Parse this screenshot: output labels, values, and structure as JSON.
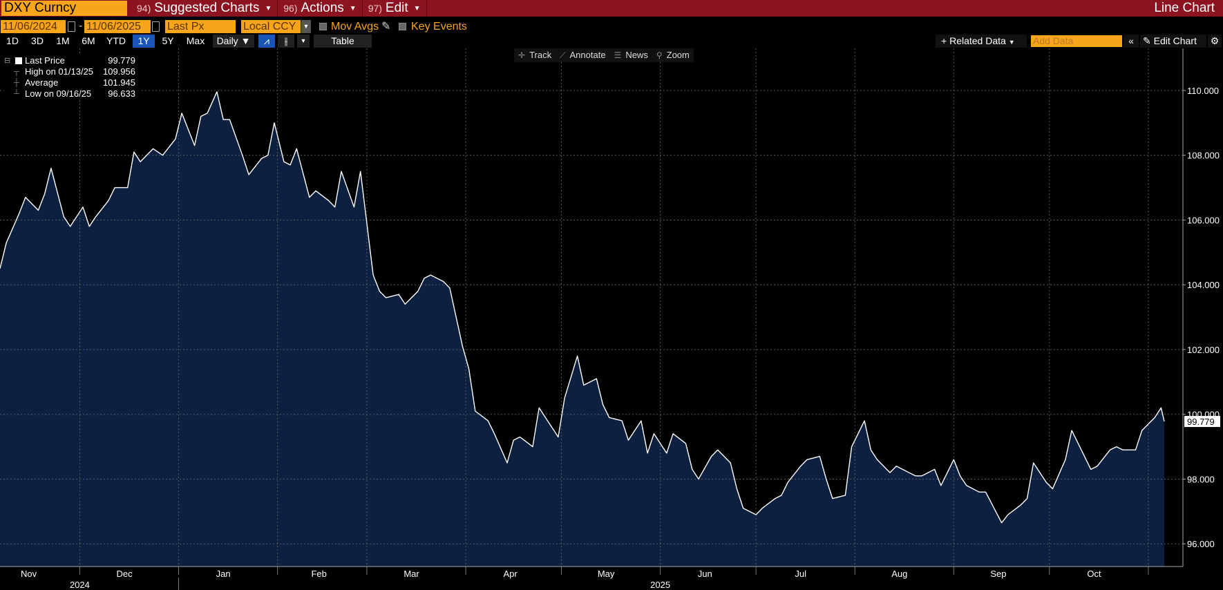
{
  "toolbar": {
    "ticker": "DXY Curncy",
    "menus": [
      {
        "num": "94)",
        "label": "Suggested Charts"
      },
      {
        "num": "96)",
        "label": "Actions"
      },
      {
        "num": "97)",
        "label": "Edit"
      }
    ],
    "chart_type": "Line Chart"
  },
  "settings": {
    "start_date": "11/06/2024",
    "end_date": "11/06/2025",
    "field": "Last Px",
    "currency": "Local CCY",
    "mov_avgs": "Mov Avgs",
    "key_events": "Key Events"
  },
  "ranges": [
    "1D",
    "3D",
    "1M",
    "6M",
    "YTD",
    "1Y",
    "5Y",
    "Max"
  ],
  "active_range": "1Y",
  "frequency": "Daily",
  "table_label": "Table",
  "related_data": "Related Data",
  "add_data_placeholder": "Add Data",
  "edit_chart": "Edit Chart",
  "tools": [
    {
      "icon": "crosshair-icon",
      "glyph": "✛",
      "label": "Track"
    },
    {
      "icon": "pencil-icon",
      "glyph": "⟋",
      "label": "Annotate"
    },
    {
      "icon": "news-icon",
      "glyph": "☰",
      "label": "News"
    },
    {
      "icon": "magnifier-icon",
      "glyph": "⚲",
      "label": "Zoom"
    }
  ],
  "legend": {
    "last_label": "Last Price",
    "last_value": "99.779",
    "high_label": "High on 01/13/25",
    "high_value": "109.956",
    "avg_label": "Average",
    "avg_value": "101.945",
    "low_label": "Low on 09/16/25",
    "low_value": "96.633"
  },
  "colors": {
    "line": "#ffffff",
    "fill": "#0d2040",
    "grid": "#5a5a5a",
    "accent": "#f7a51a",
    "topbar": "#8b1420"
  },
  "chart_data": {
    "type": "area",
    "x": [
      "2024-11-06",
      "2024-11-08",
      "2024-11-12",
      "2024-11-14",
      "2024-11-18",
      "2024-11-20",
      "2024-11-22",
      "2024-11-26",
      "2024-11-28",
      "2024-12-02",
      "2024-12-04",
      "2024-12-06",
      "2024-12-10",
      "2024-12-12",
      "2024-12-16",
      "2024-12-18",
      "2024-12-20",
      "2024-12-24",
      "2024-12-27",
      "2024-12-31",
      "2025-01-02",
      "2025-01-06",
      "2025-01-08",
      "2025-01-10",
      "2025-01-13",
      "2025-01-15",
      "2025-01-17",
      "2025-01-21",
      "2025-01-23",
      "2025-01-27",
      "2025-01-29",
      "2025-01-31",
      "2025-02-03",
      "2025-02-05",
      "2025-02-07",
      "2025-02-11",
      "2025-02-13",
      "2025-02-17",
      "2025-02-19",
      "2025-02-21",
      "2025-02-25",
      "2025-02-27",
      "2025-03-03",
      "2025-03-05",
      "2025-03-07",
      "2025-03-11",
      "2025-03-13",
      "2025-03-17",
      "2025-03-19",
      "2025-03-21",
      "2025-03-25",
      "2025-03-27",
      "2025-03-31",
      "2025-04-02",
      "2025-04-04",
      "2025-04-08",
      "2025-04-10",
      "2025-04-14",
      "2025-04-16",
      "2025-04-18",
      "2025-04-22",
      "2025-04-24",
      "2025-04-28",
      "2025-04-30",
      "2025-05-02",
      "2025-05-06",
      "2025-05-08",
      "2025-05-12",
      "2025-05-14",
      "2025-05-16",
      "2025-05-20",
      "2025-05-22",
      "2025-05-26",
      "2025-05-28",
      "2025-05-30",
      "2025-06-03",
      "2025-06-05",
      "2025-06-09",
      "2025-06-11",
      "2025-06-13",
      "2025-06-17",
      "2025-06-19",
      "2025-06-23",
      "2025-06-25",
      "2025-06-27",
      "2025-07-01",
      "2025-07-03",
      "2025-07-07",
      "2025-07-09",
      "2025-07-11",
      "2025-07-15",
      "2025-07-17",
      "2025-07-21",
      "2025-07-23",
      "2025-07-25",
      "2025-07-29",
      "2025-07-31",
      "2025-08-04",
      "2025-08-06",
      "2025-08-08",
      "2025-08-12",
      "2025-08-14",
      "2025-08-18",
      "2025-08-20",
      "2025-08-22",
      "2025-08-26",
      "2025-08-28",
      "2025-09-01",
      "2025-09-03",
      "2025-09-05",
      "2025-09-09",
      "2025-09-11",
      "2025-09-16",
      "2025-09-18",
      "2025-09-22",
      "2025-09-24",
      "2025-09-26",
      "2025-09-30",
      "2025-10-02",
      "2025-10-06",
      "2025-10-08",
      "2025-10-10",
      "2025-10-14",
      "2025-10-16",
      "2025-10-20",
      "2025-10-22",
      "2025-10-24",
      "2025-10-28",
      "2025-10-30",
      "2025-11-03",
      "2025-11-05",
      "2025-11-06"
    ],
    "values": [
      104.5,
      105.3,
      106.2,
      106.7,
      106.3,
      106.8,
      107.6,
      106.1,
      105.8,
      106.4,
      105.8,
      106.1,
      106.6,
      107.0,
      107.0,
      108.1,
      107.8,
      108.2,
      108.0,
      108.5,
      109.3,
      108.3,
      109.2,
      109.3,
      109.96,
      109.1,
      109.1,
      108.0,
      107.4,
      107.9,
      108.0,
      109.0,
      107.8,
      107.7,
      108.2,
      106.7,
      106.9,
      106.6,
      106.4,
      107.5,
      106.4,
      107.5,
      104.3,
      103.8,
      103.6,
      103.7,
      103.4,
      103.8,
      104.2,
      104.3,
      104.1,
      103.9,
      102.1,
      101.4,
      100.1,
      99.8,
      99.4,
      98.5,
      99.2,
      99.3,
      99.0,
      100.2,
      99.6,
      99.3,
      100.5,
      101.8,
      100.9,
      101.1,
      100.3,
      99.9,
      99.8,
      99.2,
      99.8,
      98.8,
      99.4,
      98.8,
      99.4,
      99.1,
      98.3,
      98.0,
      98.7,
      98.9,
      98.5,
      97.7,
      97.1,
      96.9,
      97.1,
      97.4,
      97.5,
      97.9,
      98.4,
      98.6,
      98.7,
      98.0,
      97.4,
      97.5,
      99.0,
      99.8,
      98.9,
      98.6,
      98.2,
      98.4,
      98.2,
      98.1,
      98.1,
      98.3,
      97.8,
      98.6,
      98.1,
      97.8,
      97.6,
      97.6,
      96.65,
      96.9,
      97.2,
      97.4,
      98.5,
      97.9,
      97.7,
      98.6,
      99.5,
      99.1,
      98.3,
      98.4,
      98.9,
      99.0,
      98.9,
      98.9,
      99.5,
      99.9,
      100.2,
      99.779
    ],
    "ylim": [
      95.3,
      111.3
    ],
    "y_ticks": [
      "96.000",
      "98.000",
      "100.000",
      "102.000",
      "104.000",
      "106.000",
      "108.000",
      "110.000"
    ],
    "y_tick_values": [
      96,
      98,
      100,
      102,
      104,
      106,
      108,
      110
    ],
    "month_labels": [
      {
        "label": "Nov",
        "date": "2024-11-15"
      },
      {
        "label": "Dec",
        "date": "2024-12-15"
      },
      {
        "label": "Jan",
        "date": "2025-01-15"
      },
      {
        "label": "Feb",
        "date": "2025-02-14"
      },
      {
        "label": "Mar",
        "date": "2025-03-15"
      },
      {
        "label": "Apr",
        "date": "2025-04-15"
      },
      {
        "label": "May",
        "date": "2025-05-15"
      },
      {
        "label": "Jun",
        "date": "2025-06-15"
      },
      {
        "label": "Jul",
        "date": "2025-07-15"
      },
      {
        "label": "Aug",
        "date": "2025-08-15"
      },
      {
        "label": "Sep",
        "date": "2025-09-15"
      },
      {
        "label": "Oct",
        "date": "2025-10-15"
      }
    ],
    "year_labels": [
      {
        "label": "2024",
        "date": "2024-12-01"
      },
      {
        "label": "2025",
        "date": "2025-06-01"
      }
    ],
    "month_starts": [
      "2024-12-01",
      "2025-01-01",
      "2025-02-01",
      "2025-03-01",
      "2025-04-01",
      "2025-05-01",
      "2025-06-01",
      "2025-07-01",
      "2025-08-01",
      "2025-09-01",
      "2025-10-01",
      "2025-11-01"
    ],
    "last_value_label": "99.779",
    "grid": true
  }
}
